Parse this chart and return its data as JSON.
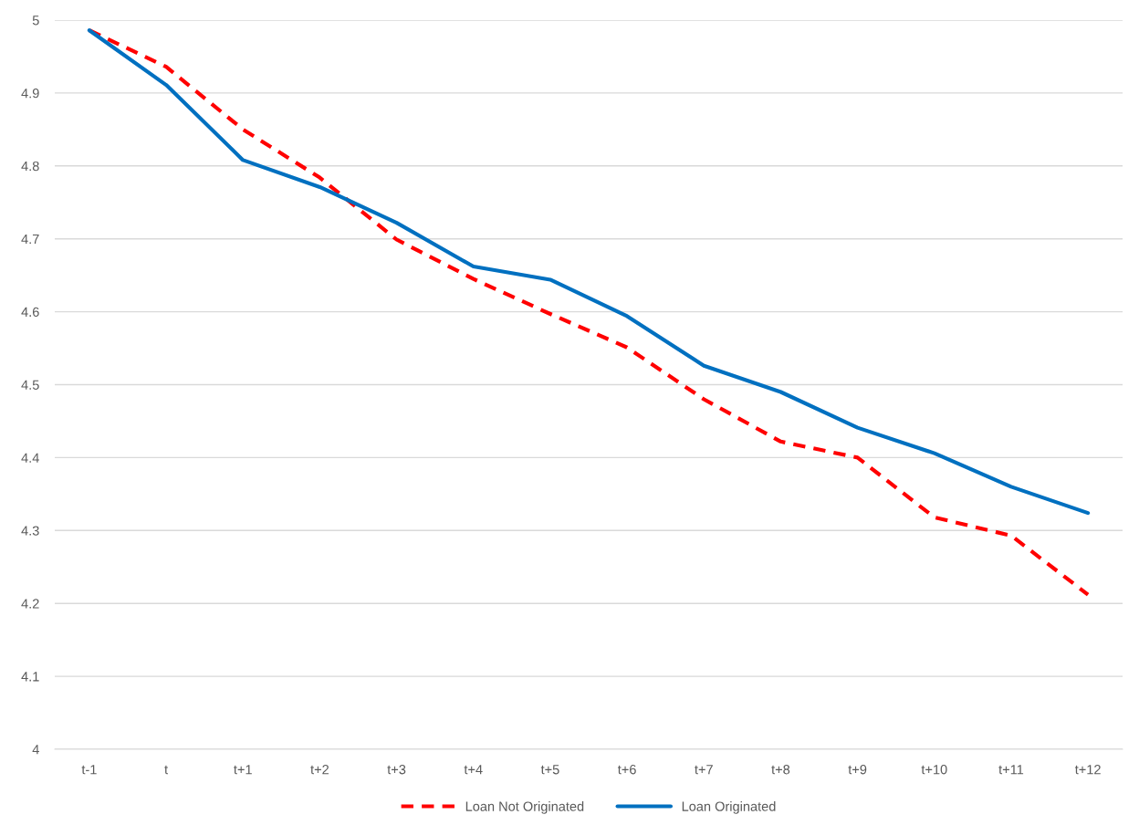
{
  "chart_data": {
    "type": "line",
    "categories": [
      "t-1",
      "t",
      "t+1",
      "t+2",
      "t+3",
      "t+4",
      "t+5",
      "t+6",
      "t+7",
      "t+8",
      "t+9",
      "t+10",
      "t+11",
      "t+12"
    ],
    "series": [
      {
        "name": "Loan Not Originated",
        "color": "#ff0000",
        "line_style": "dashed",
        "values": [
          4.986,
          4.936,
          4.85,
          4.784,
          4.699,
          4.645,
          4.597,
          4.551,
          4.48,
          4.422,
          4.4,
          4.318,
          4.293,
          4.212
        ]
      },
      {
        "name": "Loan Originated",
        "color": "#0070c0",
        "line_style": "solid",
        "values": [
          4.986,
          4.911,
          4.808,
          4.771,
          4.722,
          4.662,
          4.644,
          4.594,
          4.526,
          4.49,
          4.441,
          4.406,
          4.36,
          4.324
        ]
      }
    ],
    "ylim": [
      4,
      5
    ],
    "yticks": [
      4,
      4.1,
      4.2,
      4.3,
      4.4,
      4.5,
      4.6,
      4.7,
      4.8,
      4.9,
      5
    ],
    "grid": "y",
    "legend": "bottom",
    "marker": "none"
  }
}
